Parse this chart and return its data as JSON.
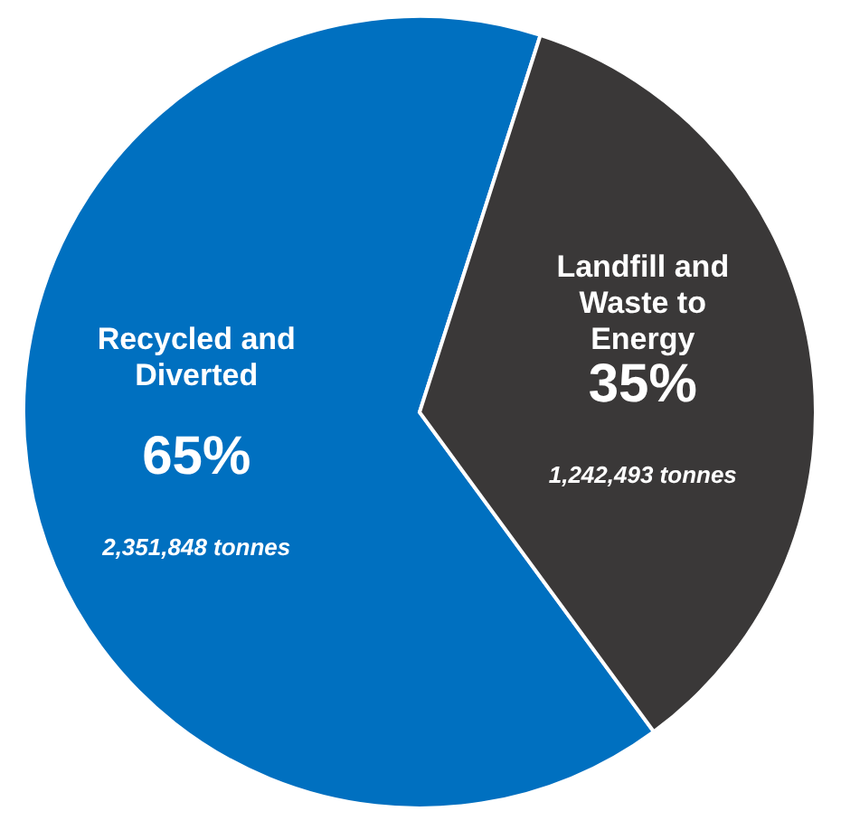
{
  "chart_data": {
    "type": "pie",
    "categories": [
      "Recycled and Diverted",
      "Landfill and Waste to Energy"
    ],
    "values": [
      65,
      35
    ],
    "colors": [
      "#0070c0",
      "#3a3838"
    ],
    "value_labels": [
      "65%",
      "35%"
    ],
    "annotations": [
      "2,351,848 tonnes",
      "1,242,493  tonnes"
    ]
  }
}
